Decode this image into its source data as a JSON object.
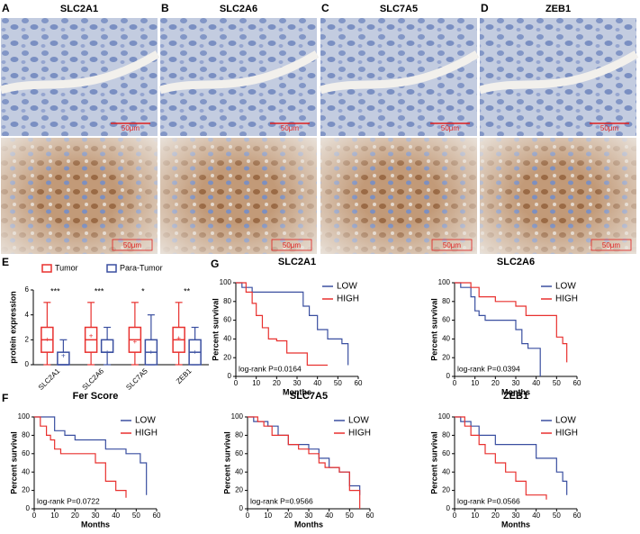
{
  "panels": [
    {
      "label": "A",
      "title": "SLC2A1",
      "scale_top": "50μm",
      "scale_bottom": "50μm"
    },
    {
      "label": "B",
      "title": "SLC2A6",
      "scale_top": "50μm",
      "scale_bottom": "50μm"
    },
    {
      "label": "C",
      "title": "SLC7A5",
      "scale_top": "50μm",
      "scale_bottom": "50μm"
    },
    {
      "label": "D",
      "title": "ZEB1",
      "scale_top": "50μm",
      "scale_bottom": "50μm"
    }
  ],
  "chart_data": [
    {
      "type": "box",
      "label": "E",
      "ylabel": "protein expression",
      "categories": [
        "SLC2A1",
        "SLC2A6",
        "SLC7A5",
        "ZEB1"
      ],
      "significance": [
        "***",
        "***",
        "*",
        "**"
      ],
      "ylim": [
        0,
        6
      ],
      "yticks": [
        0,
        2,
        4,
        6
      ],
      "legend": "top",
      "series": [
        {
          "name": "Tumor",
          "color": "#e8312f",
          "min": [
            0,
            0,
            0,
            0
          ],
          "q1": [
            1,
            1,
            1,
            1
          ],
          "median": [
            2,
            2,
            2,
            2
          ],
          "q3": [
            3,
            3,
            3,
            3
          ],
          "max": [
            5,
            5,
            5,
            5
          ],
          "mean": [
            2,
            2.3,
            1.8,
            2.1
          ]
        },
        {
          "name": "Para-Tumor",
          "color": "#3a4fa0",
          "min": [
            0,
            0,
            0,
            0
          ],
          "q1": [
            0,
            1,
            0,
            0
          ],
          "median": [
            0,
            1,
            1,
            1
          ],
          "q3": [
            1,
            2,
            2,
            2
          ],
          "max": [
            2,
            3,
            4,
            3
          ],
          "mean": [
            0.7,
            1,
            1,
            1
          ]
        }
      ]
    },
    {
      "type": "survival",
      "label": "G",
      "title": "SLC2A1",
      "xlabel": "Months",
      "ylabel": "Percent survival",
      "annotation": "log-rank P=0.0164",
      "xlim": [
        0,
        60
      ],
      "xticks": [
        0,
        10,
        20,
        30,
        40,
        50,
        60
      ],
      "ylim": [
        0,
        100
      ],
      "yticks": [
        0,
        20,
        40,
        60,
        80,
        100
      ],
      "legend": "upper right",
      "series": [
        {
          "name": "LOW",
          "color": "#3a4fa0",
          "x": [
            0,
            3,
            8,
            30,
            33,
            36,
            40,
            45,
            52,
            55
          ],
          "values": [
            100,
            95,
            90,
            90,
            75,
            65,
            50,
            40,
            35,
            12
          ]
        },
        {
          "name": "HIGH",
          "color": "#e8312f",
          "x": [
            0,
            5,
            8,
            10,
            13,
            16,
            20,
            25,
            35,
            45
          ],
          "values": [
            100,
            90,
            78,
            65,
            52,
            40,
            38,
            25,
            12,
            12
          ]
        }
      ]
    },
    {
      "type": "survival",
      "title": "SLC2A6",
      "xlabel": "Months",
      "ylabel": "Percent survival",
      "annotation": "log-rank P=0.0394",
      "xlim": [
        0,
        60
      ],
      "xticks": [
        0,
        10,
        20,
        30,
        40,
        50,
        60
      ],
      "ylim": [
        0,
        100
      ],
      "yticks": [
        0,
        20,
        40,
        60,
        80,
        100
      ],
      "legend": "upper right",
      "series": [
        {
          "name": "LOW",
          "color": "#3a4fa0",
          "x": [
            0,
            3,
            8,
            10,
            12,
            15,
            30,
            33,
            36,
            42
          ],
          "values": [
            100,
            95,
            85,
            70,
            65,
            60,
            50,
            35,
            30,
            0
          ]
        },
        {
          "name": "HIGH",
          "color": "#e8312f",
          "x": [
            0,
            8,
            12,
            20,
            30,
            35,
            45,
            50,
            53,
            55
          ],
          "values": [
            100,
            95,
            85,
            80,
            75,
            65,
            65,
            42,
            35,
            15
          ]
        }
      ]
    },
    {
      "type": "survival",
      "label": "F",
      "title": "Fer Score",
      "xlabel": "Months",
      "ylabel": "Percent survival",
      "annotation": "log-rank P=0.0722",
      "xlim": [
        0,
        60
      ],
      "xticks": [
        0,
        10,
        20,
        30,
        40,
        50,
        60
      ],
      "ylim": [
        0,
        100
      ],
      "yticks": [
        0,
        20,
        40,
        60,
        80,
        100
      ],
      "legend": "upper right",
      "series": [
        {
          "name": "LOW",
          "color": "#3a4fa0",
          "x": [
            0,
            10,
            15,
            20,
            30,
            35,
            45,
            52,
            55
          ],
          "values": [
            100,
            85,
            80,
            75,
            75,
            65,
            60,
            50,
            15
          ]
        },
        {
          "name": "HIGH",
          "color": "#e8312f",
          "x": [
            0,
            3,
            6,
            8,
            10,
            13,
            20,
            30,
            35,
            40,
            45
          ],
          "values": [
            100,
            90,
            80,
            75,
            65,
            60,
            60,
            50,
            30,
            20,
            12
          ]
        }
      ]
    },
    {
      "type": "survival",
      "title": "SLC7A5",
      "xlabel": "Months",
      "ylabel": "Percent survival",
      "annotation": "log-rank P=0.9566",
      "xlim": [
        0,
        60
      ],
      "xticks": [
        0,
        10,
        20,
        30,
        40,
        50,
        60
      ],
      "ylim": [
        0,
        100
      ],
      "yticks": [
        0,
        20,
        40,
        60,
        80,
        100
      ],
      "legend": "upper right",
      "series": [
        {
          "name": "LOW",
          "color": "#3a4fa0",
          "x": [
            0,
            3,
            10,
            15,
            20,
            30,
            35,
            40,
            45,
            50,
            55
          ],
          "values": [
            100,
            95,
            90,
            80,
            70,
            65,
            55,
            45,
            40,
            25,
            15
          ]
        },
        {
          "name": "HIGH",
          "color": "#e8312f",
          "x": [
            0,
            5,
            8,
            12,
            20,
            25,
            30,
            35,
            38,
            45,
            50,
            55
          ],
          "values": [
            100,
            95,
            90,
            80,
            70,
            65,
            60,
            50,
            45,
            40,
            20,
            0
          ]
        }
      ]
    },
    {
      "type": "survival",
      "title": "ZEB1",
      "xlabel": "Months",
      "ylabel": "Percent survival",
      "annotation": "log-rank P=0.0566",
      "xlim": [
        0,
        60
      ],
      "xticks": [
        0,
        10,
        20,
        30,
        40,
        50,
        60
      ],
      "ylim": [
        0,
        100
      ],
      "yticks": [
        0,
        20,
        40,
        60,
        80,
        100
      ],
      "legend": "upper right",
      "series": [
        {
          "name": "LOW",
          "color": "#3a4fa0",
          "x": [
            0,
            3,
            8,
            12,
            20,
            30,
            40,
            50,
            53,
            55
          ],
          "values": [
            100,
            95,
            90,
            80,
            70,
            70,
            55,
            40,
            30,
            15
          ]
        },
        {
          "name": "HIGH",
          "color": "#e8312f",
          "x": [
            0,
            5,
            8,
            12,
            15,
            20,
            25,
            30,
            35,
            45
          ],
          "values": [
            100,
            90,
            80,
            70,
            60,
            50,
            40,
            30,
            15,
            10
          ]
        }
      ]
    }
  ]
}
